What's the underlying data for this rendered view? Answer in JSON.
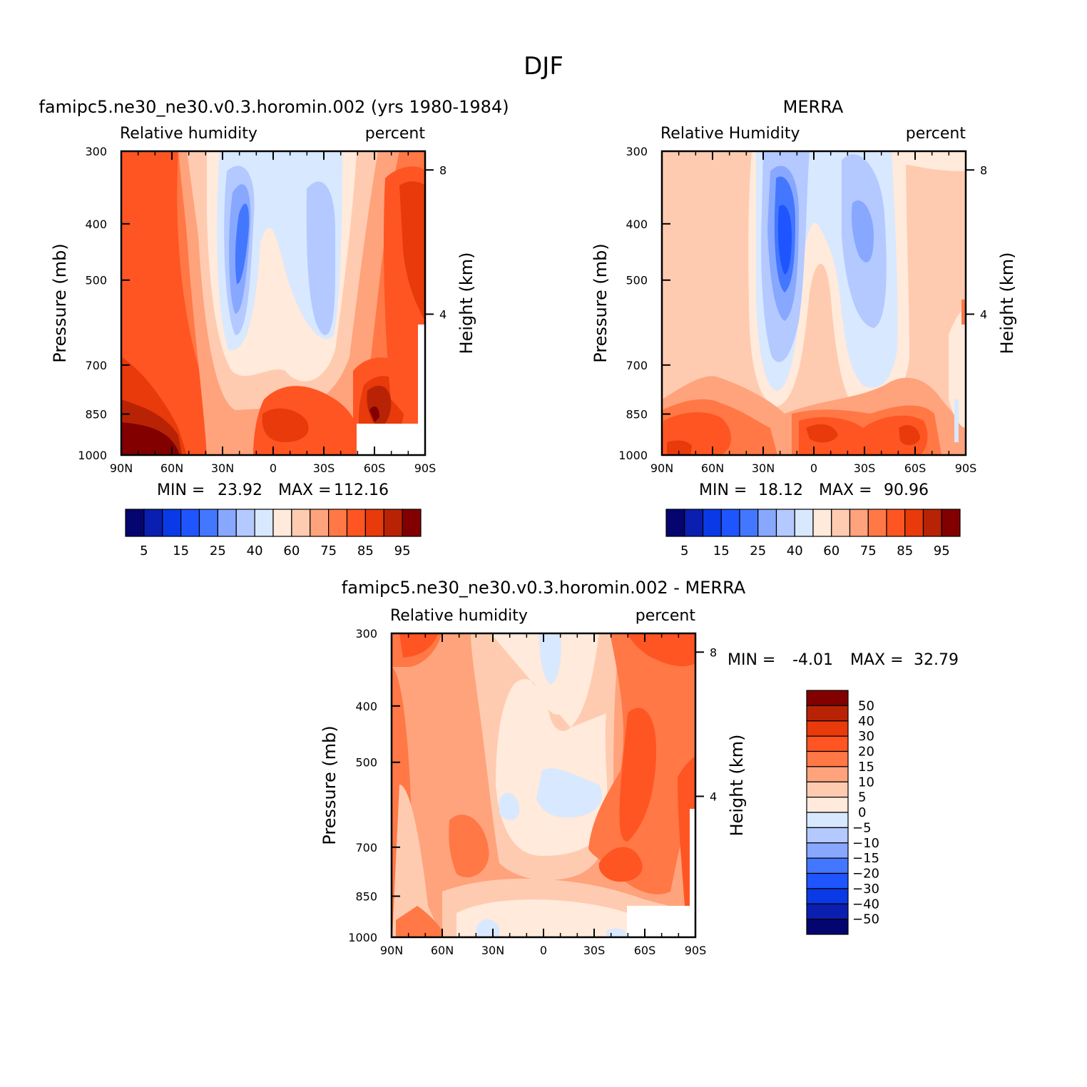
{
  "page": {
    "suptitle": "DJF"
  },
  "chart_data": [
    {
      "type": "heatmap",
      "title": "famipc5.ne30_ne30.v0.3.horomin.002 (yrs 1980-1984)",
      "left_label": "Relative humidity",
      "right_label": "percent",
      "ylabel": "Pressure (mb)",
      "y2label": "Height (km)",
      "x_ticks": [
        "90N",
        "60N",
        "30N",
        "0",
        "30S",
        "60S",
        "90S"
      ],
      "y_ticks": [
        "300",
        "400",
        "500",
        "700",
        "850",
        "1000"
      ],
      "y2_ticks": [
        "8",
        "4"
      ],
      "ylim": [
        1000,
        300
      ],
      "min_label": "MIN =",
      "min_value": "23.92",
      "max_label": "MAX =",
      "max_value": "112.16",
      "colorbar": {
        "orientation": "horizontal",
        "labels": [
          "5",
          "15",
          "25",
          "40",
          "60",
          "75",
          "85",
          "95"
        ],
        "colors": [
          "#050570",
          "#0a1fb0",
          "#0a3ae6",
          "#1f55ff",
          "#4477ff",
          "#88a8ff",
          "#b3c9ff",
          "#d8e8ff",
          "#ffeadb",
          "#ffcbb0",
          "#ffa37d",
          "#ff7845",
          "#ff5523",
          "#e83a0a",
          "#b82305",
          "#820000"
        ]
      }
    },
    {
      "type": "heatmap",
      "title": "MERRA",
      "left_label": "Relative Humidity",
      "right_label": "percent",
      "ylabel": "Pressure (mb)",
      "y2label": "Height (km)",
      "x_ticks": [
        "90N",
        "60N",
        "30N",
        "0",
        "30S",
        "60S",
        "90S"
      ],
      "y_ticks": [
        "300",
        "400",
        "500",
        "700",
        "850",
        "1000"
      ],
      "y2_ticks": [
        "8",
        "4"
      ],
      "ylim": [
        1000,
        300
      ],
      "min_label": "MIN =",
      "min_value": "18.12",
      "max_label": "MAX =",
      "max_value": "90.96",
      "colorbar": {
        "orientation": "horizontal",
        "labels": [
          "5",
          "15",
          "25",
          "40",
          "60",
          "75",
          "85",
          "95"
        ],
        "colors": [
          "#050570",
          "#0a1fb0",
          "#0a3ae6",
          "#1f55ff",
          "#4477ff",
          "#88a8ff",
          "#b3c9ff",
          "#d8e8ff",
          "#ffeadb",
          "#ffcbb0",
          "#ffa37d",
          "#ff7845",
          "#ff5523",
          "#e83a0a",
          "#b82305",
          "#820000"
        ]
      }
    },
    {
      "type": "heatmap",
      "title": "famipc5.ne30_ne30.v0.3.horomin.002 - MERRA",
      "left_label": "Relative humidity",
      "right_label": "percent",
      "ylabel": "Pressure (mb)",
      "y2label": "Height (km)",
      "x_ticks": [
        "90N",
        "60N",
        "30N",
        "0",
        "30S",
        "60S",
        "90S"
      ],
      "y_ticks": [
        "300",
        "400",
        "500",
        "700",
        "850",
        "1000"
      ],
      "y2_ticks": [
        "8",
        "4"
      ],
      "ylim": [
        1000,
        300
      ],
      "min_label": "MIN =",
      "min_value": "-4.01",
      "max_label": "MAX =",
      "max_value": "32.79",
      "colorbar": {
        "orientation": "vertical",
        "labels": [
          "50",
          "40",
          "30",
          "20",
          "15",
          "10",
          "5",
          "0",
          "-5",
          "-10",
          "-15",
          "-20",
          "-30",
          "-40",
          "-50"
        ],
        "colors": [
          "#820000",
          "#b82305",
          "#e83a0a",
          "#ff5523",
          "#ff7845",
          "#ffa37d",
          "#ffcbb0",
          "#ffeadb",
          "#d8e8ff",
          "#b3c9ff",
          "#88a8ff",
          "#4477ff",
          "#1f55ff",
          "#0a3ae6",
          "#0a1fb0",
          "#050570"
        ]
      }
    }
  ]
}
